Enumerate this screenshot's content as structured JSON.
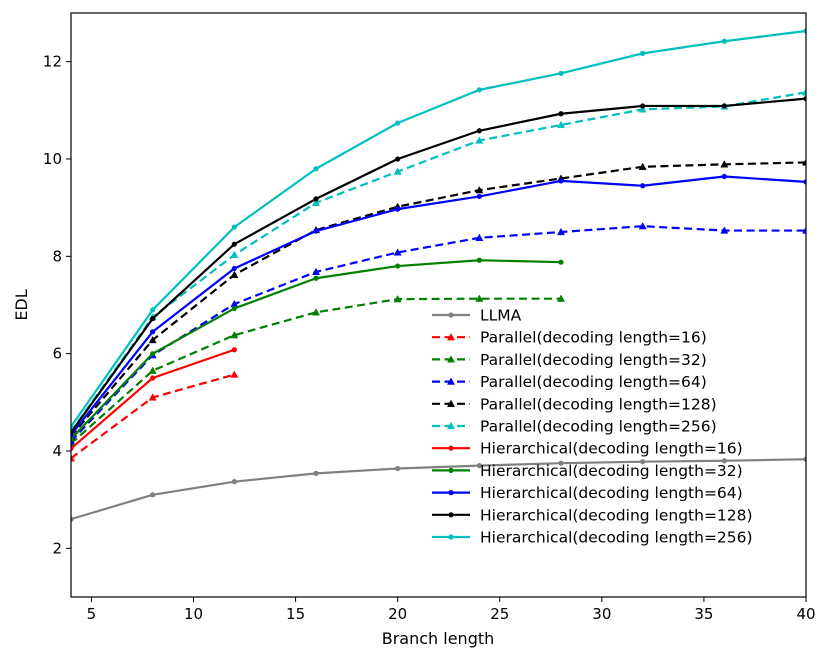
{
  "chart_data": {
    "type": "line",
    "title": "",
    "xlabel": "Branch length",
    "ylabel": "EDL",
    "xlim": [
      4,
      40
    ],
    "ylim": [
      1,
      13
    ],
    "xticks": [
      5,
      10,
      15,
      20,
      25,
      30,
      35,
      40
    ],
    "yticks": [
      2,
      4,
      6,
      8,
      10,
      12
    ],
    "grid": false,
    "legend_position": "lower-right",
    "series": [
      {
        "name": "LLMA",
        "color": "#808080",
        "style": "solid",
        "marker": "dot",
        "x": [
          4,
          8,
          12,
          16,
          20,
          24,
          28,
          32,
          36,
          40
        ],
        "values": [
          2.6,
          3.1,
          3.37,
          3.54,
          3.64,
          3.7,
          3.75,
          3.78,
          3.8,
          3.83
        ]
      },
      {
        "name": "Parallel(decoding length=16)",
        "color": "#ff0000",
        "style": "dashed",
        "marker": "triangle",
        "x": [
          4,
          8,
          12
        ],
        "values": [
          3.85,
          5.1,
          5.57
        ]
      },
      {
        "name": "Parallel(decoding length=32)",
        "color": "#008000",
        "style": "dashed",
        "marker": "triangle",
        "x": [
          4,
          8,
          12,
          16,
          20,
          24,
          28
        ],
        "values": [
          4.15,
          5.65,
          6.38,
          6.85,
          7.12,
          7.13,
          7.13
        ]
      },
      {
        "name": "Parallel(decoding length=64)",
        "color": "#0000ff",
        "style": "dashed",
        "marker": "triangle",
        "x": [
          4,
          8,
          12,
          16,
          20,
          24,
          28,
          32,
          36,
          40
        ],
        "values": [
          4.2,
          5.97,
          7.02,
          7.68,
          8.08,
          8.38,
          8.5,
          8.62,
          8.53,
          8.53
        ]
      },
      {
        "name": "Parallel(decoding length=128)",
        "color": "#000000",
        "style": "dashed",
        "marker": "triangle",
        "x": [
          4,
          8,
          12,
          16,
          20,
          24,
          28,
          32,
          36,
          40
        ],
        "values": [
          4.3,
          6.28,
          7.62,
          8.54,
          9.02,
          9.36,
          9.6,
          9.84,
          9.89,
          9.93
        ]
      },
      {
        "name": "Parallel(decoding length=256)",
        "color": "#00bfbf",
        "style": "dashed",
        "marker": "triangle",
        "x": [
          4,
          8,
          12,
          16,
          20,
          24,
          28,
          32,
          36,
          40
        ],
        "values": [
          4.4,
          6.75,
          8.03,
          9.1,
          9.74,
          10.38,
          10.7,
          11.02,
          11.08,
          11.37
        ]
      },
      {
        "name": "Hierarchical(decoding length=16)",
        "color": "#ff0000",
        "style": "solid",
        "marker": "dot",
        "x": [
          4,
          8,
          12
        ],
        "values": [
          4.05,
          5.5,
          6.08
        ]
      },
      {
        "name": "Hierarchical(decoding length=32)",
        "color": "#008000",
        "style": "solid",
        "marker": "dot",
        "x": [
          4,
          8,
          12,
          16,
          20,
          24,
          28
        ],
        "values": [
          4.25,
          6.0,
          6.93,
          7.55,
          7.8,
          7.92,
          7.88
        ]
      },
      {
        "name": "Hierarchical(decoding length=64)",
        "color": "#0000ff",
        "style": "solid",
        "marker": "dot",
        "x": [
          4,
          8,
          12,
          16,
          20,
          24,
          28,
          32,
          36,
          40
        ],
        "values": [
          4.33,
          6.45,
          7.75,
          8.52,
          8.97,
          9.23,
          9.55,
          9.45,
          9.64,
          9.53
        ]
      },
      {
        "name": "Hierarchical(decoding length=128)",
        "color": "#000000",
        "style": "solid",
        "marker": "dot",
        "x": [
          4,
          8,
          12,
          16,
          20,
          24,
          28,
          32,
          36,
          40
        ],
        "values": [
          4.38,
          6.72,
          8.25,
          9.18,
          10.0,
          10.58,
          10.93,
          11.09,
          11.09,
          11.24
        ]
      },
      {
        "name": "Hierarchical(decoding length=256)",
        "color": "#00bfbf",
        "style": "solid",
        "marker": "dot",
        "x": [
          4,
          8,
          12,
          16,
          20,
          24,
          28,
          32,
          36,
          40
        ],
        "values": [
          4.5,
          6.9,
          8.6,
          9.8,
          10.74,
          11.42,
          11.76,
          12.17,
          12.42,
          12.63
        ]
      }
    ]
  }
}
